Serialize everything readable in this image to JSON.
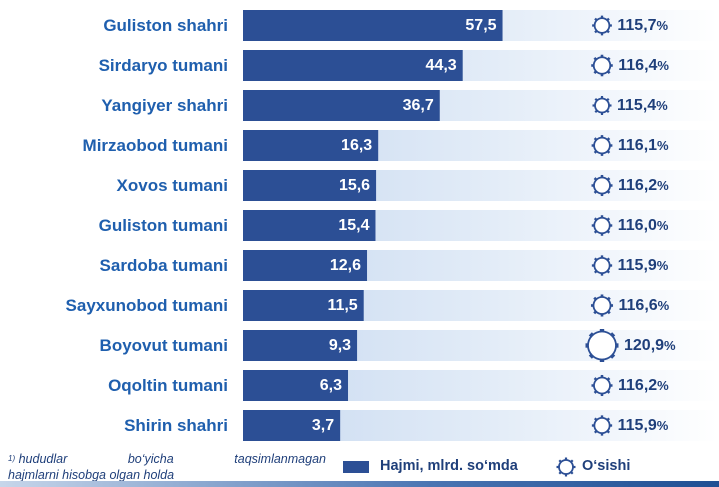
{
  "chart_data": {
    "type": "bar",
    "orientation": "horizontal",
    "categories": [
      "Guliston shahri",
      "Sirdaryo tumani",
      "Yangiyer shahri",
      "Mirzaobod tumani",
      "Xovos tumani",
      "Guliston tumani",
      "Sardoba tumani",
      "Sayxunobod tumani",
      "Boyovut tumani",
      "Oqoltin tumani",
      "Shirin shahri"
    ],
    "series": [
      {
        "name": "Hajmi, mlrd. so‘mda",
        "values": [
          57.5,
          44.3,
          36.7,
          16.3,
          15.6,
          15.4,
          12.6,
          11.5,
          9.3,
          6.3,
          3.7
        ],
        "labels": [
          "57,5",
          "44,3",
          "36,7",
          "16,3",
          "15,6",
          "15,4",
          "12,6",
          "11,5",
          "9,3",
          "6,3",
          "3,7"
        ],
        "color": "#2c4f95"
      },
      {
        "name": "O‘sishi",
        "values": [
          115.7,
          116.4,
          115.4,
          116.1,
          116.2,
          116.0,
          115.9,
          116.6,
          120.9,
          116.2,
          115.9
        ],
        "labels": [
          "115,7",
          "116,4",
          "115,4",
          "116,1",
          "116,2",
          "116,0",
          "115,9",
          "116,6",
          "120,9",
          "116,2",
          "115,9"
        ],
        "unit": "%",
        "color": "#2c4f95"
      }
    ],
    "legend": "bottom",
    "grid": false
  },
  "footnote": {
    "marker": "1)",
    "line1_words": [
      "hududlar",
      "bo‘yicha",
      "taqsimlanmagan"
    ],
    "line2": "hajmlarni hisobga olgan holda"
  },
  "legend": {
    "bar_label": "Hajmi, mlrd. so‘mda",
    "gear_label": "O‘sishi"
  },
  "colors": {
    "bar": "#2c4f95",
    "label_text": "#1f5fae",
    "track_light": "#dde8f6",
    "track_end": "#ffffff"
  }
}
